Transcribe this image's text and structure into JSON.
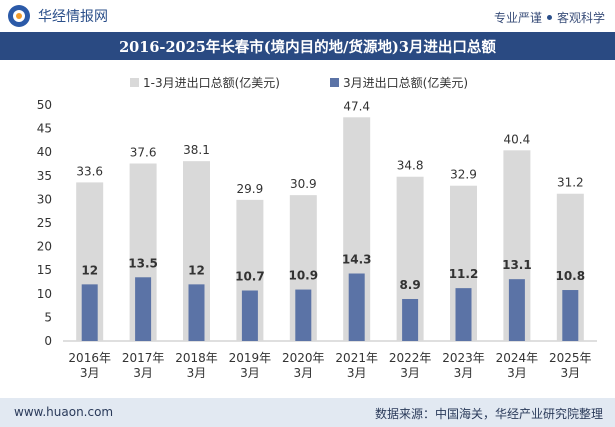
{
  "header": {
    "brand": "华经情报网",
    "tagline_left": "专业严谨",
    "tagline_right": "客观科学",
    "title": "2016-2025年长春市(境内目的地/货源地)3月进出口总额"
  },
  "footer": {
    "site": "www.huaon.com",
    "source": "数据来源：中国海关，华经产业研究院整理"
  },
  "colors": {
    "series1": "#d9d9d9",
    "series2": "#5b73a6",
    "title_band": "#2a4a82",
    "footer_band": "#e2e9f2"
  },
  "chart_data": {
    "type": "bar",
    "categories": [
      "2016年\n3月",
      "2017年\n3月",
      "2018年\n3月",
      "2019年\n3月",
      "2020年\n3月",
      "2021年\n3月",
      "2022年\n3月",
      "2023年\n3月",
      "2024年\n3月",
      "2025年\n3月"
    ],
    "series": [
      {
        "name": "1-3月进出口总额(亿美元)",
        "values": [
          33.6,
          37.6,
          38.1,
          29.9,
          30.9,
          47.4,
          34.8,
          32.9,
          40.4,
          31.2
        ]
      },
      {
        "name": "3月进出口总额(亿美元)",
        "values": [
          12,
          13.5,
          12,
          10.7,
          10.9,
          14.3,
          8.9,
          11.2,
          13.1,
          10.8
        ]
      }
    ],
    "ylim": [
      0,
      50
    ],
    "yticks": [
      0,
      5,
      10,
      15,
      20,
      25,
      30,
      35,
      40,
      45,
      50
    ],
    "grid": false,
    "legend_position": "top-center",
    "overlay": true
  }
}
